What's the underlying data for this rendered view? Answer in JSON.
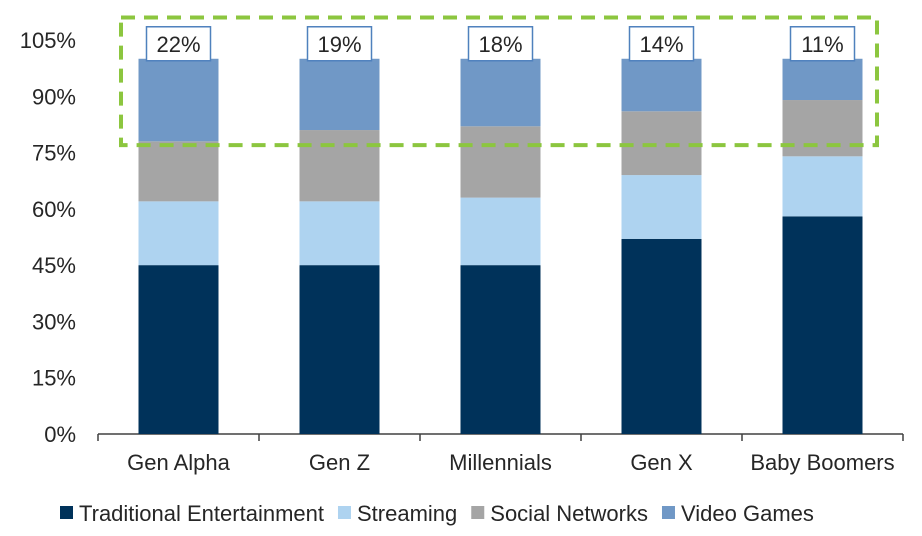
{
  "chart_data": {
    "type": "bar",
    "stacked": true,
    "categories": [
      "Gen Alpha",
      "Gen Z",
      "Millennials",
      "Gen X",
      "Baby Boomers"
    ],
    "series": [
      {
        "name": "Traditional Entertainment",
        "color": "#00325a",
        "values": [
          45,
          45,
          45,
          52,
          58
        ]
      },
      {
        "name": "Streaming",
        "color": "#aed3f0",
        "values": [
          17,
          17,
          18,
          17,
          16
        ]
      },
      {
        "name": "Social Networks",
        "color": "#a5a5a5",
        "values": [
          16,
          19,
          19,
          17,
          15
        ]
      },
      {
        "name": "Video Games",
        "color": "#7098c6",
        "values": [
          22,
          19,
          18,
          14,
          11
        ]
      }
    ],
    "callout_labels": [
      "22%",
      "19%",
      "18%",
      "14%",
      "11%"
    ],
    "yticks": [
      "0%",
      "15%",
      "30%",
      "45%",
      "60%",
      "75%",
      "90%",
      "105%"
    ],
    "ytick_values": [
      0,
      15,
      30,
      45,
      60,
      75,
      90,
      105
    ],
    "ylim": [
      0,
      105
    ],
    "grid": false,
    "highlight_box": {
      "color": "#8cc63f",
      "style": "dashed",
      "from_value": 77,
      "to_value": 111
    },
    "callout_border_color": "#4f81bd",
    "legend_position": "bottom",
    "title": "",
    "xlabel": "",
    "ylabel": ""
  }
}
